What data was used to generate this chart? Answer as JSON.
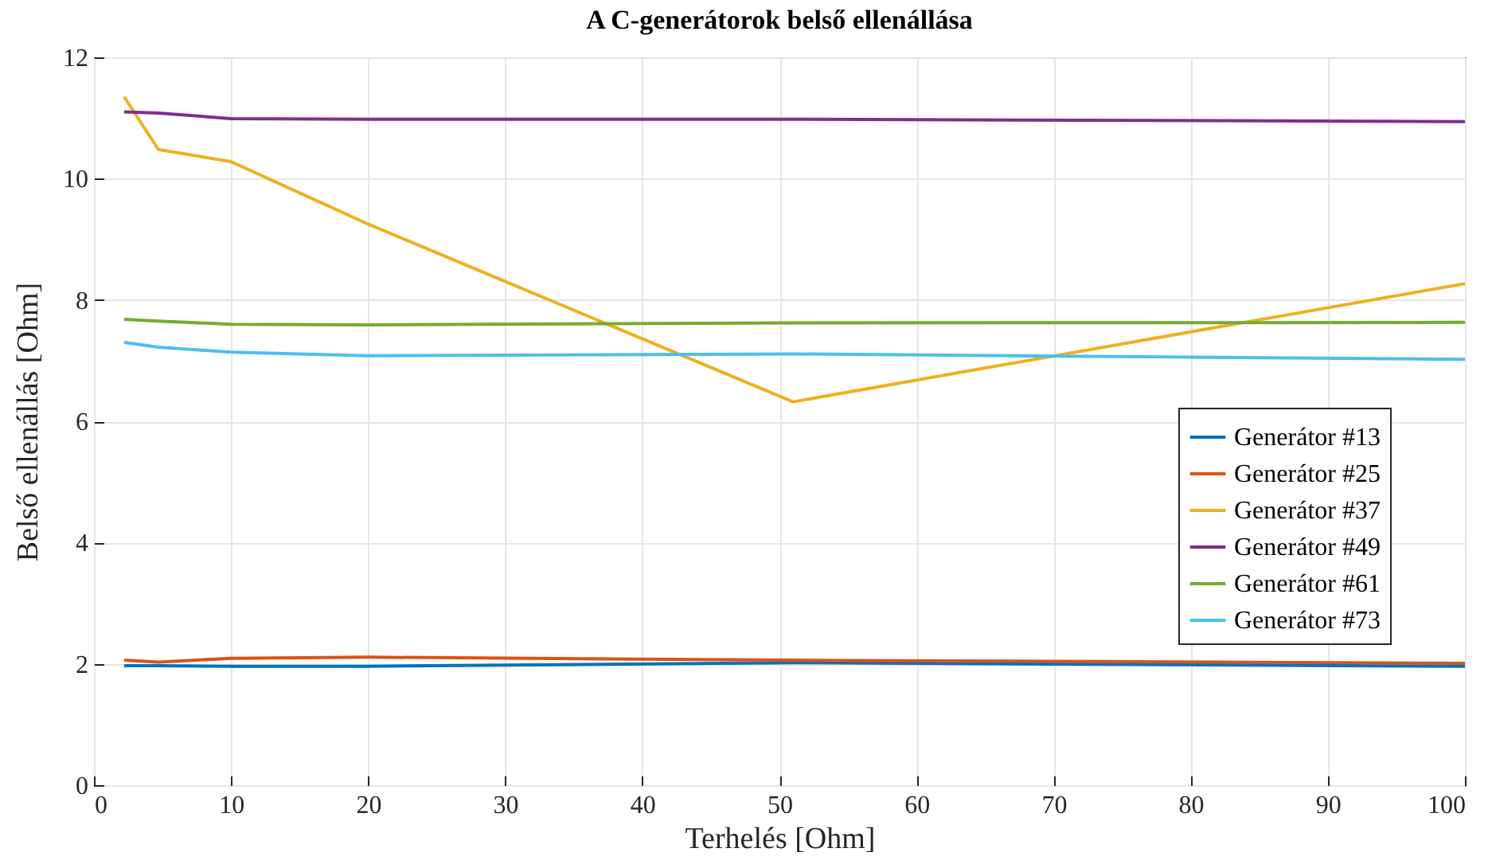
{
  "chart_data": {
    "type": "line",
    "title": "A C-generátorok belső ellenállása",
    "xlabel": "Terhelés [Ohm]",
    "ylabel": "Belső ellenállás [Ohm]",
    "x": [
      2.2,
      4.7,
      10,
      20,
      51,
      100
    ],
    "series": [
      {
        "name": "Generátor #13",
        "color": "#0072bd",
        "values": [
          1.97,
          1.97,
          1.96,
          1.96,
          2.02,
          1.96
        ]
      },
      {
        "name": "Generátor #25",
        "color": "#d95319",
        "values": [
          2.06,
          2.03,
          2.09,
          2.11,
          2.06,
          2.01
        ]
      },
      {
        "name": "Generátor #37",
        "color": "#edb120",
        "values": [
          11.35,
          10.48,
          10.28,
          9.25,
          6.32,
          8.27
        ]
      },
      {
        "name": "Generátor #49",
        "color": "#7e2f8e",
        "values": [
          11.1,
          11.08,
          10.99,
          10.98,
          10.98,
          10.94
        ]
      },
      {
        "name": "Generátor #61",
        "color": "#77ac30",
        "values": [
          7.68,
          7.65,
          7.6,
          7.59,
          7.62,
          7.63
        ]
      },
      {
        "name": "Generátor #73",
        "color": "#4dbeee",
        "values": [
          7.3,
          7.22,
          7.14,
          7.08,
          7.11,
          7.02
        ]
      }
    ],
    "xlim": [
      0,
      100
    ],
    "xticks": [
      0,
      10,
      20,
      30,
      40,
      50,
      60,
      70,
      80,
      90,
      100
    ],
    "ylim": [
      0,
      12
    ],
    "yticks": [
      0,
      2,
      4,
      6,
      8,
      10,
      12
    ],
    "grid": true,
    "legend": "right",
    "line_style": "solid",
    "marker": "none"
  }
}
